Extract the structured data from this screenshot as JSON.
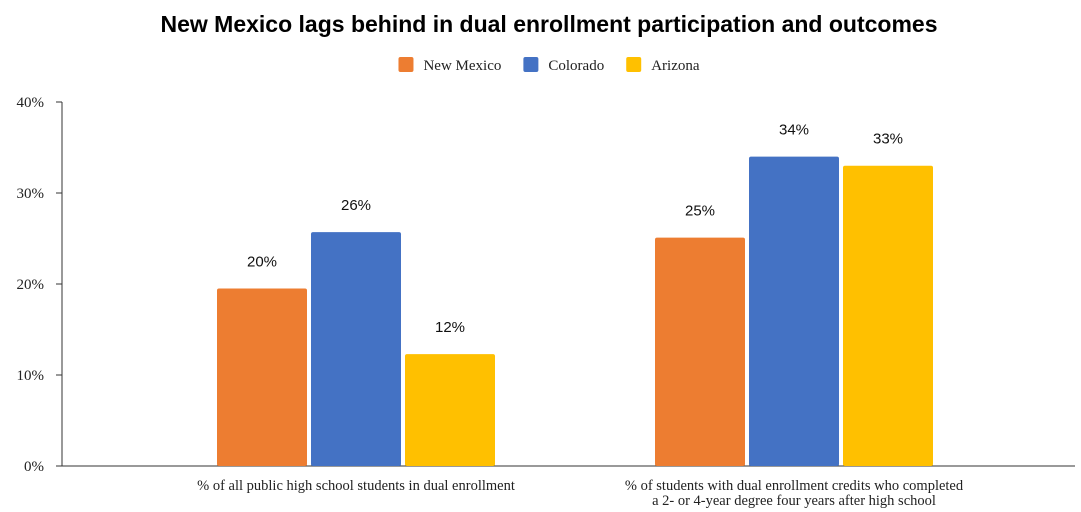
{
  "chart_data": {
    "type": "bar",
    "title": "New Mexico lags behind in dual enrollment participation and outcomes",
    "categories": [
      [
        "% of all public high school students in dual enrollment"
      ],
      [
        "% of students with dual enrollment credits who completed",
        "a 2- or 4-year degree four years after high school"
      ]
    ],
    "series": [
      {
        "name": "New Mexico",
        "color": "#ED7D31",
        "values": [
          19.5,
          25.1
        ],
        "labels": [
          "20%",
          "25%"
        ]
      },
      {
        "name": "Colorado",
        "color": "#4472C4",
        "values": [
          25.7,
          34.0
        ],
        "labels": [
          "26%",
          "34%"
        ]
      },
      {
        "name": "Arizona",
        "color": "#FFC000",
        "values": [
          12.3,
          33.0
        ],
        "labels": [
          "12%",
          "33%"
        ]
      }
    ],
    "yticks": [
      "0%",
      "10%",
      "20%",
      "30%",
      "40%"
    ],
    "ylim": [
      0,
      40
    ],
    "legend_position": "top-center",
    "grid": false
  }
}
